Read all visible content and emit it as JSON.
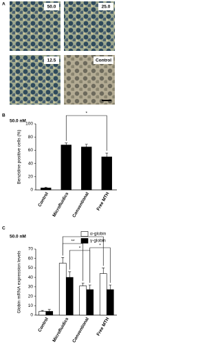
{
  "panel_labels": [
    "A",
    "B",
    "C"
  ],
  "images": {
    "labels": [
      "50.0",
      "25.0",
      "12.5",
      "Control"
    ]
  },
  "chart_data": [
    {
      "type": "bar",
      "title": "50.0 nM",
      "y_label": "Benzidine positive cells (%)",
      "categories": [
        "Control",
        "Microfluidics",
        "Conventional",
        "Free MTH"
      ],
      "values": [
        3,
        68,
        65,
        50
      ],
      "errors": [
        1,
        3,
        4,
        6
      ],
      "color": "#000000",
      "ylim": [
        0,
        100
      ],
      "yticks": [
        0,
        20,
        40,
        60,
        80,
        100
      ],
      "annotations": [
        "*"
      ]
    },
    {
      "type": "grouped-bar",
      "title": "50.0 nM",
      "y_label": "Globin mRNA expression levels",
      "categories": [
        "Control",
        "Microfluidics",
        "Conventional",
        "Free MTH"
      ],
      "series": [
        {
          "name": "α-globin",
          "color": "#ffffff",
          "values": [
            4,
            55,
            31,
            44
          ],
          "errors": [
            1,
            6,
            3,
            6
          ]
        },
        {
          "name": "γ-globin",
          "color": "#000000",
          "values": [
            4,
            40,
            27,
            27
          ],
          "errors": [
            2,
            6,
            5,
            5
          ]
        }
      ],
      "ylim": [
        0,
        70
      ],
      "yticks": [
        0,
        10,
        20,
        30,
        40,
        50,
        60,
        70
      ],
      "annotations": [
        "*",
        "**",
        "*",
        "*"
      ]
    }
  ]
}
